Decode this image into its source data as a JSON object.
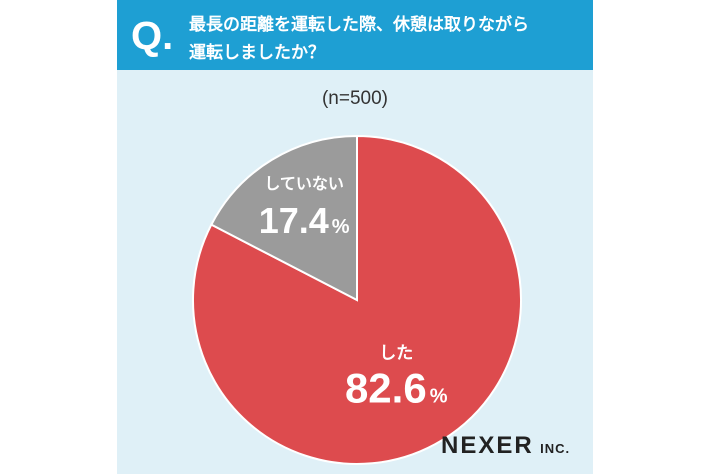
{
  "question": {
    "mark": "Q.",
    "line1": "最長の距離を運転した際、休憩は取りながら",
    "line2": "運転しましたか？"
  },
  "sample_size": "(n=500)",
  "brand": {
    "name": "NEXER",
    "suffix": "INC."
  },
  "colors": {
    "header": "#1e9fd3",
    "background": "#dff0f7",
    "did": "#dd4b4e",
    "did_not": "#9b9b9b"
  },
  "chart_data": {
    "type": "pie",
    "title": "最長の距離を運転した際、休憩は取りながら運転しましたか？",
    "slices": [
      {
        "label": "した",
        "value": 82.6,
        "display": "82.6",
        "unit": "%",
        "color": "#dd4b4e"
      },
      {
        "label": "していない",
        "value": 17.4,
        "display": "17.4",
        "unit": "%",
        "color": "#9b9b9b"
      }
    ],
    "start": "12 o'clock",
    "direction": "clockwise"
  }
}
